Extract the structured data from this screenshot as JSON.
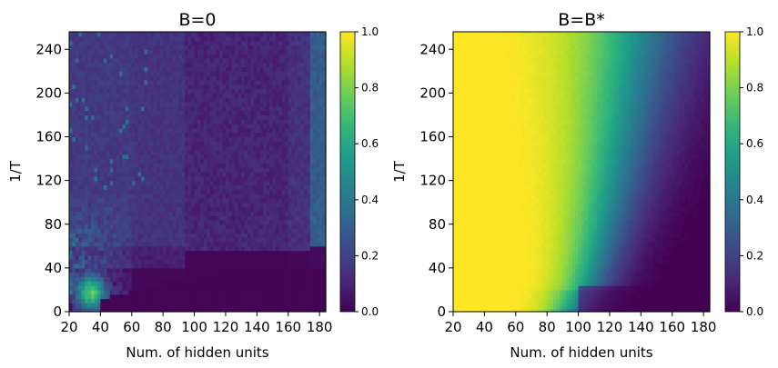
{
  "chart_data": [
    {
      "type": "heatmap",
      "title": "B=0",
      "xlabel": "Num. of hidden units",
      "ylabel": "1/T",
      "xlim": [
        20,
        184
      ],
      "ylim": [
        0,
        256
      ],
      "xticks": [
        20,
        40,
        60,
        80,
        100,
        120,
        140,
        160,
        180
      ],
      "yticks": [
        0,
        40,
        80,
        120,
        160,
        200,
        240
      ],
      "colormap": "viridis",
      "colorbar": {
        "range": [
          0.0,
          1.0
        ],
        "ticks": [
          "0.0",
          "0.2",
          "0.4",
          "0.6",
          "0.8",
          "1.0"
        ]
      },
      "pattern": "mostly near 0; values about 0.1-0.2 for 1/T above ~60; hot spot about 0.6-0.7 near 30-40 hidden units and 1/T 10-30; right-most column about 0.3 above 1/T 60"
    },
    {
      "type": "heatmap",
      "title": "B=B*",
      "xlabel": "Num. of hidden units",
      "ylabel": "1/T",
      "xlim": [
        20,
        184
      ],
      "ylim": [
        0,
        256
      ],
      "xticks": [
        20,
        40,
        60,
        80,
        100,
        120,
        140,
        160,
        180
      ],
      "yticks": [
        0,
        40,
        80,
        120,
        160,
        200,
        240
      ],
      "colormap": "viridis",
      "colorbar": {
        "range": [
          0.0,
          1.0
        ],
        "ticks": [
          "0.0",
          "0.2",
          "0.4",
          "0.6",
          "0.8",
          "1.0"
        ]
      },
      "pattern": "value ~1.0 for few hidden units, decreasing to ~0 as hidden units grow; the transition moves from ~95 units at 1/T=0 to ~150 units at 1/T=240"
    }
  ],
  "colors": {
    "viridis_stops": [
      "#440154",
      "#482878",
      "#3e4989",
      "#31688e",
      "#26828e",
      "#1f9e89",
      "#35b779",
      "#6ece58",
      "#b5de2b",
      "#fde725"
    ]
  }
}
